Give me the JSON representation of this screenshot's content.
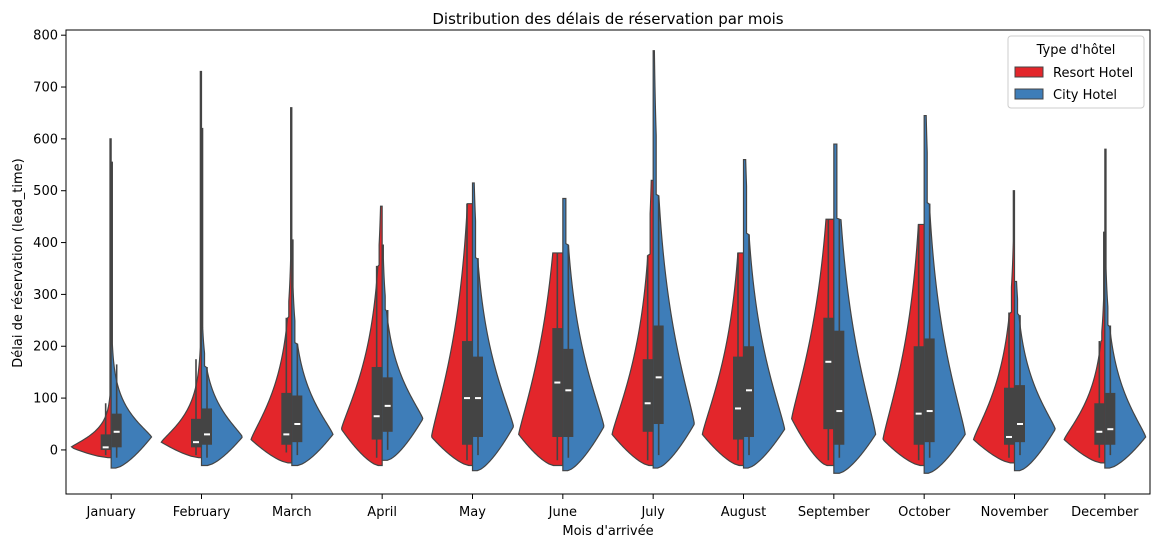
{
  "chart_data": {
    "type": "violin",
    "title": "Distribution des délais de réservation par mois",
    "xlabel": "Mois d'arrivée",
    "ylabel": "Délai de réservation (lead_time)",
    "ylim": [
      -85,
      810
    ],
    "yticks": [
      0,
      100,
      200,
      300,
      400,
      500,
      600,
      700,
      800
    ],
    "categories": [
      "January",
      "February",
      "March",
      "April",
      "May",
      "June",
      "July",
      "August",
      "September",
      "October",
      "November",
      "December"
    ],
    "split": true,
    "legend": {
      "title": "Type d'hôtel",
      "placement": "top-right"
    },
    "series": [
      {
        "name": "Resort Hotel",
        "color": "#e3262b",
        "side": "left",
        "stats": [
          {
            "q1": 0,
            "median": 5,
            "q3": 30,
            "wlow": -10,
            "whigh": 90,
            "max": 600,
            "mode": 5,
            "low": -15
          },
          {
            "q1": 5,
            "median": 15,
            "q3": 60,
            "wlow": -10,
            "whigh": 175,
            "max": 730,
            "mode": 15,
            "low": -15
          },
          {
            "q1": 10,
            "median": 30,
            "q3": 110,
            "wlow": -5,
            "whigh": 255,
            "max": 660,
            "mode": 20,
            "low": -25
          },
          {
            "q1": 20,
            "median": 65,
            "q3": 160,
            "wlow": -15,
            "whigh": 355,
            "max": 470,
            "mode": 40,
            "low": -30
          },
          {
            "q1": 10,
            "median": 100,
            "q3": 210,
            "wlow": -20,
            "whigh": 475,
            "max": 475,
            "mode": 25,
            "low": -30
          },
          {
            "q1": 25,
            "median": 130,
            "q3": 235,
            "wlow": -20,
            "whigh": 380,
            "max": 380,
            "mode": 30,
            "low": -30
          },
          {
            "q1": 35,
            "median": 90,
            "q3": 175,
            "wlow": -20,
            "whigh": 375,
            "max": 520,
            "mode": 30,
            "low": -30
          },
          {
            "q1": 20,
            "median": 80,
            "q3": 180,
            "wlow": -20,
            "whigh": 380,
            "max": 380,
            "mode": 30,
            "low": -30
          },
          {
            "q1": 40,
            "median": 170,
            "q3": 255,
            "wlow": -20,
            "whigh": 445,
            "max": 445,
            "mode": 60,
            "low": -30
          },
          {
            "q1": 10,
            "median": 70,
            "q3": 200,
            "wlow": -20,
            "whigh": 435,
            "max": 435,
            "mode": 20,
            "low": -30
          },
          {
            "q1": 10,
            "median": 25,
            "q3": 120,
            "wlow": -15,
            "whigh": 265,
            "max": 500,
            "mode": 20,
            "low": -25
          },
          {
            "q1": 10,
            "median": 35,
            "q3": 90,
            "wlow": -15,
            "whigh": 210,
            "max": 420,
            "mode": 20,
            "low": -25
          }
        ]
      },
      {
        "name": "City Hotel",
        "color": "#3e7db8",
        "side": "right",
        "stats": [
          {
            "q1": 5,
            "median": 35,
            "q3": 70,
            "wlow": -15,
            "whigh": 165,
            "max": 555,
            "mode": 25,
            "low": -35
          },
          {
            "q1": 10,
            "median": 30,
            "q3": 80,
            "wlow": -15,
            "whigh": 160,
            "max": 620,
            "mode": 25,
            "low": -30
          },
          {
            "q1": 15,
            "median": 50,
            "q3": 105,
            "wlow": -10,
            "whigh": 205,
            "max": 405,
            "mode": 30,
            "low": -30
          },
          {
            "q1": 35,
            "median": 85,
            "q3": 140,
            "wlow": 0,
            "whigh": 270,
            "max": 395,
            "mode": 60,
            "low": -20
          },
          {
            "q1": 25,
            "median": 100,
            "q3": 180,
            "wlow": -10,
            "whigh": 370,
            "max": 515,
            "mode": 45,
            "low": -40
          },
          {
            "q1": 25,
            "median": 115,
            "q3": 195,
            "wlow": -15,
            "whigh": 395,
            "max": 485,
            "mode": 45,
            "low": -40
          },
          {
            "q1": 50,
            "median": 140,
            "q3": 240,
            "wlow": -10,
            "whigh": 490,
            "max": 770,
            "mode": 50,
            "low": -35
          },
          {
            "q1": 25,
            "median": 115,
            "q3": 200,
            "wlow": -10,
            "whigh": 415,
            "max": 560,
            "mode": 40,
            "low": -35
          },
          {
            "q1": 10,
            "median": 75,
            "q3": 230,
            "wlow": -15,
            "whigh": 445,
            "max": 590,
            "mode": 30,
            "low": -45
          },
          {
            "q1": 15,
            "median": 75,
            "q3": 215,
            "wlow": -15,
            "whigh": 475,
            "max": 645,
            "mode": 30,
            "low": -45
          },
          {
            "q1": 15,
            "median": 50,
            "q3": 125,
            "wlow": -10,
            "whigh": 260,
            "max": 325,
            "mode": 40,
            "low": -40
          },
          {
            "q1": 10,
            "median": 40,
            "q3": 110,
            "wlow": -10,
            "whigh": 240,
            "max": 580,
            "mode": 25,
            "low": -35
          }
        ]
      }
    ]
  }
}
